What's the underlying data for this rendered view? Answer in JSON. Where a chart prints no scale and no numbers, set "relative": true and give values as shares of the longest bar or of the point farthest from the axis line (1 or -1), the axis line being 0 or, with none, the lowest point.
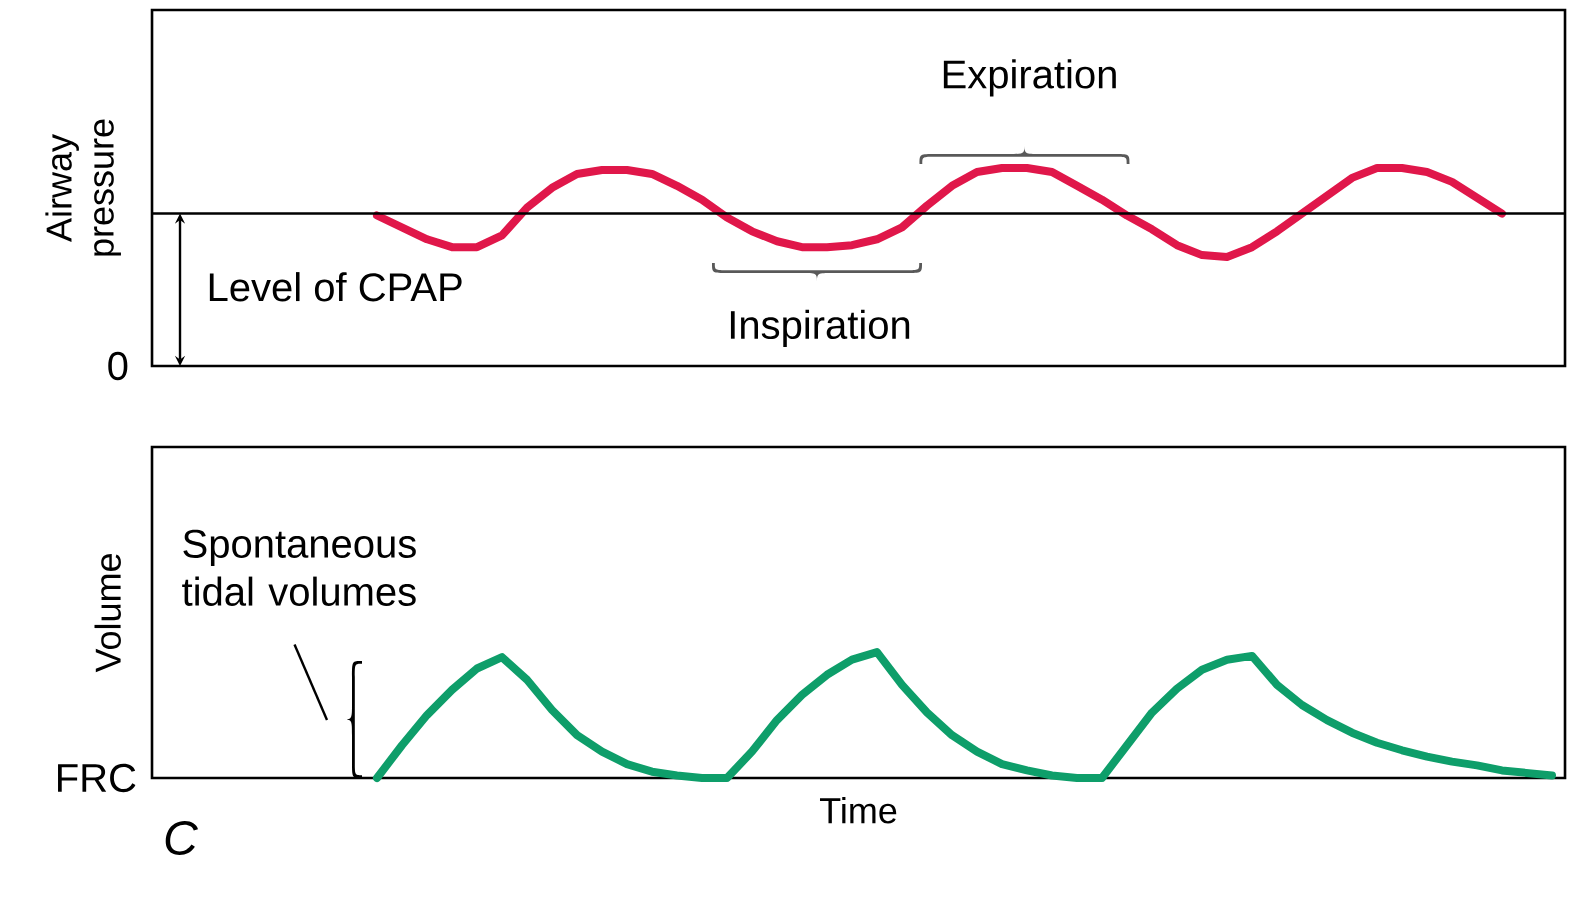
{
  "chart_data": [
    {
      "type": "line",
      "relative": true,
      "ylabel": "Airway pressure",
      "categories": [
        null,
        null,
        null,
        null,
        null,
        null,
        null,
        null,
        null,
        null,
        null,
        null,
        null,
        null,
        null,
        null,
        null,
        null,
        null,
        null,
        null,
        null,
        null,
        null,
        null,
        null,
        null,
        null,
        null,
        null,
        null,
        null,
        null,
        null,
        null,
        null,
        null,
        null,
        null,
        null,
        null,
        null,
        null,
        null,
        null,
        null,
        null,
        null,
        null,
        null,
        null,
        null,
        null,
        null,
        null,
        null,
        null
      ],
      "series": [
        {
          "color": "#e0174a",
          "values": [
            null,
            null,
            null,
            null,
            null,
            null,
            null,
            null,
            null,
            0.76,
            0.7,
            0.64,
            0.6,
            0.6,
            0.66,
            0.8,
            0.9,
            0.97,
            0.99,
            0.99,
            0.97,
            0.91,
            0.84,
            0.75,
            0.68,
            0.63,
            0.6,
            0.6,
            0.61,
            0.64,
            0.7,
            0.81,
            0.91,
            0.98,
            1.0,
            1.0,
            0.98,
            0.91,
            0.84,
            0.76,
            0.69,
            0.61,
            0.56,
            0.55,
            0.6,
            0.68,
            0.77,
            0.86,
            0.95,
            1.0,
            1.0,
            0.98,
            0.93,
            0.85,
            0.77,
            null,
            null
          ]
        }
      ],
      "ref_lines": [
        {
          "axis": "y",
          "value": 0.77,
          "label": "Level of CPAP"
        }
      ],
      "annotations": [
        "Expiration",
        "Inspiration",
        "0"
      ]
    },
    {
      "type": "line",
      "relative": true,
      "ylabel": "Volume",
      "xlabel": "Time",
      "categories": [
        null,
        null,
        null,
        null,
        null,
        null,
        null,
        null,
        null,
        null,
        null,
        null,
        null,
        null,
        null,
        null,
        null,
        null,
        null,
        null,
        null,
        null,
        null,
        null,
        null,
        null,
        null,
        null,
        null,
        null,
        null,
        null,
        null,
        null,
        null,
        null,
        null,
        null,
        null,
        null,
        null,
        null,
        null,
        null,
        null,
        null,
        null,
        null,
        null,
        null,
        null,
        null,
        null,
        null,
        null,
        null,
        null
      ],
      "series": [
        {
          "color": "#0e9e6a",
          "values": [
            null,
            null,
            null,
            null,
            null,
            null,
            null,
            null,
            null,
            0,
            0.26,
            0.5,
            0.7,
            0.87,
            0.96,
            0.78,
            0.54,
            0.34,
            0.21,
            0.11,
            0.05,
            0.02,
            0,
            0,
            0.21,
            0.46,
            0.66,
            0.82,
            0.94,
            1.0,
            0.74,
            0.52,
            0.34,
            0.21,
            0.11,
            0.06,
            0.02,
            0,
            0,
            0.26,
            0.52,
            0.71,
            0.86,
            0.94,
            0.97,
            0.74,
            0.58,
            0.46,
            0.36,
            0.28,
            0.22,
            0.17,
            0.13,
            0.1,
            0.06,
            0.04,
            0.02
          ]
        }
      ],
      "annotations": [
        "Spontaneous tidal volumes",
        "FRC",
        "C"
      ]
    }
  ]
}
